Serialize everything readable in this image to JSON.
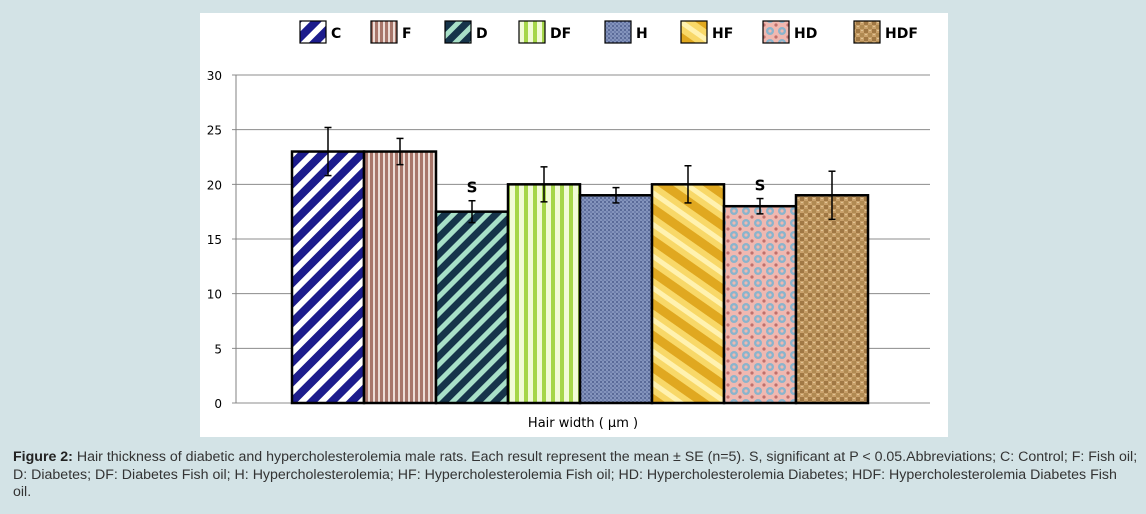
{
  "chart_data": {
    "type": "bar",
    "categories": [
      "C",
      "F",
      "D",
      "DF",
      "H",
      "HF",
      "HD",
      "HDF"
    ],
    "series": [
      {
        "values": [
          23,
          23,
          17.5,
          20,
          19,
          20,
          18,
          19
        ],
        "errors": [
          2.2,
          1.2,
          1.0,
          1.6,
          0.7,
          1.7,
          0.7,
          2.2
        ]
      }
    ],
    "annotations": [
      {
        "category": "D",
        "text": "S"
      },
      {
        "category": "HD",
        "text": "S"
      }
    ],
    "legend": [
      "C",
      "F",
      "D",
      "DF",
      "H",
      "HF",
      "HD",
      "HDF"
    ],
    "legend_position": "top",
    "xlabel": "Hair width ( μm )",
    "ylabel": "",
    "ylim": [
      0,
      30
    ],
    "yticks": [
      0,
      5,
      10,
      15,
      20,
      25,
      30
    ],
    "grid": true,
    "colors": {
      "C": "#1c1c8c",
      "F": "#a8766a",
      "D": "#16344a",
      "DF": "#a6d64a",
      "H": "#6878a4",
      "HF": "#e8b830",
      "HD": "#e8a8a0",
      "HDF": "#b88a4c",
      "gridline": "#808080",
      "background": "#d3e3e6"
    }
  },
  "caption": {
    "label": "Figure 2:",
    "text": "Hair thickness of diabetic and hypercholesterolemia male rats. Each result represent the mean ± SE (n=5). S, significant at P < 0.05.Abbreviations; C: Control; F: Fish oil; D: Diabetes; DF: Diabetes Fish oil; H: Hypercholesterolemia; HF: Hypercholesterolemia Fish oil; HD: Hypercholesterolemia Diabetes; HDF: Hypercholesterolemia Diabetes Fish oil."
  }
}
